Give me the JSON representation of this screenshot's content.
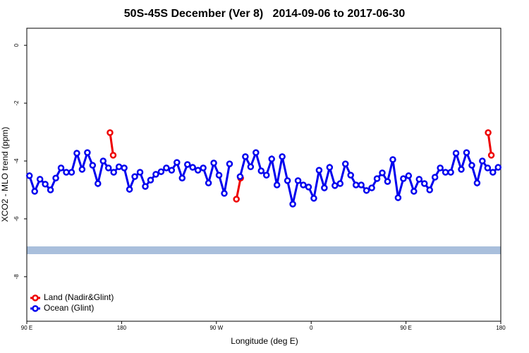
{
  "chart_data": {
    "type": "line",
    "title": "50S-45S December (Ver 8)   2014-09-06 to 2017-06-30",
    "x_label": "Longitude (deg E)",
    "y_label": "XCO2 - MLO trend (ppm)",
    "xlim": [
      90,
      540
    ],
    "xticks": [
      {
        "value": 90,
        "label": "90 E"
      },
      {
        "value": 180,
        "label": "180"
      },
      {
        "value": 270,
        "label": "90 W"
      },
      {
        "value": 360,
        "label": "0"
      },
      {
        "value": 450,
        "label": "90 E"
      },
      {
        "value": 540,
        "label": "180"
      }
    ],
    "ylim": [
      -9.54,
      0.59
    ],
    "yticks": [
      0,
      -2,
      -4,
      -6,
      -8
    ],
    "legend": "bottom-left",
    "series": [
      {
        "name": "Land (Nadir&Glint)",
        "color": "#ee0000",
        "x": [
          169,
          172,
          null,
          289,
          293,
          null,
          528,
          531
        ],
        "values": [
          -3.02,
          -3.8,
          null,
          -5.32,
          -4.59,
          null,
          -3.02,
          -3.8
        ]
      },
      {
        "name": "Ocean (Glint)",
        "color": "#0000ee",
        "x": [
          92.5,
          97.5,
          102.5,
          107.5,
          112.5,
          117.5,
          122.5,
          127.5,
          132.5,
          137.5,
          142.5,
          147.5,
          152.5,
          157.5,
          162.5,
          167.5,
          172.5,
          177.5,
          182.5,
          187.5,
          192.5,
          197.5,
          202.5,
          207.5,
          212.5,
          217.5,
          222.5,
          227.5,
          232.5,
          237.5,
          242.5,
          247.5,
          252.5,
          257.5,
          262.5,
          267.5,
          272.5,
          277.5,
          282.5,
          287.5,
          292.5,
          297.5,
          302.5,
          307.5,
          312.5,
          317.5,
          322.5,
          327.5,
          332.5,
          337.5,
          342.5,
          347.5,
          352.5,
          357.5,
          362.5,
          367.5,
          372.5,
          377.5,
          382.5,
          387.5,
          392.5,
          397.5,
          402.5,
          407.5,
          412.5,
          417.5,
          422.5,
          427.5,
          432.5,
          437.5,
          442.5,
          447.5,
          452.5,
          457.5,
          462.5,
          467.5,
          472.5,
          477.5,
          482.5,
          487.5,
          492.5,
          497.5,
          502.5,
          507.5,
          512.5,
          517.5,
          522.5,
          527.5,
          532.5,
          537.5
        ],
        "values": [
          -4.51,
          -5.05,
          -4.63,
          -4.8,
          -5.0,
          -4.59,
          -4.24,
          -4.39,
          -4.39,
          -3.73,
          -4.29,
          -3.71,
          -4.15,
          -4.78,
          -4.0,
          -4.24,
          -4.39,
          -4.2,
          -4.24,
          -4.98,
          -4.54,
          -4.39,
          -4.88,
          -4.66,
          -4.46,
          -4.37,
          -4.24,
          -4.32,
          -4.05,
          -4.59,
          -4.12,
          -4.22,
          -4.32,
          -4.24,
          -4.76,
          -4.07,
          -4.49,
          -5.12,
          -4.1,
          null,
          -4.54,
          -3.85,
          -4.2,
          -3.71,
          -4.34,
          -4.49,
          -3.93,
          -4.83,
          -3.85,
          -4.68,
          -5.49,
          -4.68,
          -4.83,
          -4.9,
          -5.29,
          -4.32,
          -4.93,
          -4.22,
          -4.85,
          -4.78,
          -4.1,
          -4.49,
          -4.83,
          -4.83,
          -5.02,
          -4.93,
          -4.61,
          -4.41,
          -4.71,
          -3.95,
          -5.27,
          -4.61,
          -4.51,
          -5.05,
          -4.63,
          -4.78,
          -5.0,
          -4.56,
          -4.24,
          -4.39,
          -4.39,
          -3.73,
          -4.29,
          -3.71,
          -4.15,
          -4.76,
          -4.0,
          -4.24,
          -4.39,
          -4.22
        ]
      }
    ]
  }
}
